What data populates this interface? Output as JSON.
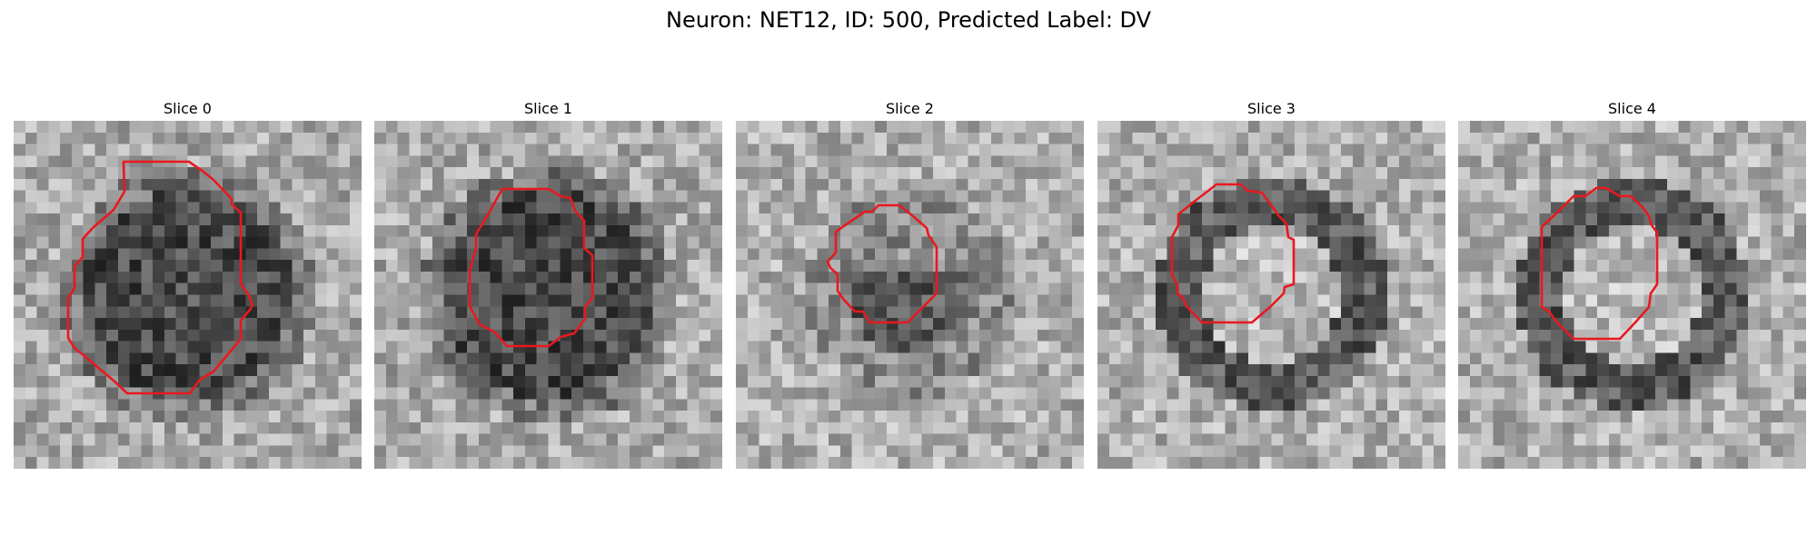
{
  "figure": {
    "title": "Neuron: NET12, ID: 500, Predicted Label: DV"
  },
  "colors": {
    "contour": "#e8191f"
  },
  "panels": [
    {
      "title": "Slice 0",
      "tone": "dark-blob"
    },
    {
      "title": "Slice 1",
      "tone": "dark-blob"
    },
    {
      "title": "Slice 2",
      "tone": "mixed"
    },
    {
      "title": "Slice 3",
      "tone": "ring"
    },
    {
      "title": "Slice 4",
      "tone": "ring"
    }
  ]
}
